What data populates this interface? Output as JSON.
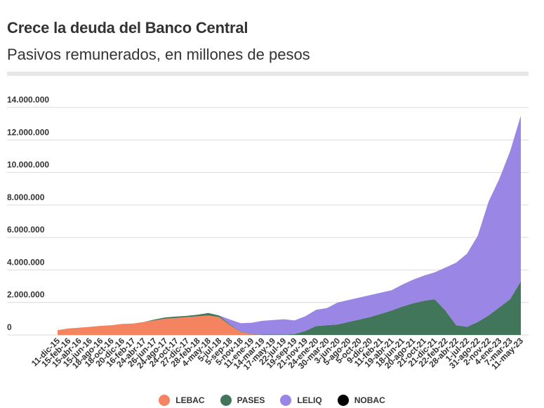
{
  "title": "Crece la deuda del Banco Central",
  "subtitle": "Pasivos remunerados, en millones de pesos",
  "colors": {
    "LEBAC": "#f4845f",
    "PASES": "#42765a",
    "LELIQ": "#9a86e5",
    "NOBAC": "#000000"
  },
  "legend": [
    "LEBAC",
    "PASES",
    "LELIQ",
    "NOBAC"
  ],
  "chart_data": {
    "type": "area",
    "stacked": true,
    "ylim": [
      0,
      14000000
    ],
    "yticks": [
      "0",
      "2.000.000",
      "4.000.000",
      "6.000.000",
      "8.000.000",
      "10.000.000",
      "12.000.000",
      "14.000.000"
    ],
    "grid": true,
    "legend_position": "bottom",
    "xticks": [
      "11-dic-15",
      "15-feb-16",
      "15-abr-16",
      "15-jun-16",
      "18-ago-16",
      "18-oct-16",
      "20-dic-16",
      "16-feb-17",
      "24-abr-17",
      "26-jun-17",
      "24-ago-17",
      "24-oct-17",
      "27-dic-17",
      "28-feb-18",
      "4-may-18",
      "5-jul-18",
      "5-sep-18",
      "5-nov-18",
      "11-ene-19",
      "14-mar-19",
      "17-may-19",
      "22-jul-19",
      "19-sep-19",
      "21-nov-19",
      "24-ene-20",
      "30-mar-20",
      "3-jun-20",
      "5-ago-20",
      "5-oct-20",
      "9-dic-20",
      "11-feb-21",
      "19-abr-21",
      "18-jun-21",
      "20-ago-21",
      "21-oct-21",
      "21-dic-21",
      "22-feb-22",
      "28-abr-22",
      "1-jul-22",
      "31-ago-22",
      "2-nov-22",
      "4-ene-23",
      "7-mar-23",
      "11-may-23"
    ],
    "series": [
      {
        "name": "LEBAC",
        "values": [
          300000,
          400000,
          450000,
          500000,
          560000,
          600000,
          680000,
          700000,
          800000,
          900000,
          1000000,
          1050000,
          1100000,
          1150000,
          1200000,
          1100000,
          600000,
          200000,
          30000,
          0,
          0,
          0,
          0,
          0,
          0,
          0,
          0,
          0,
          0,
          0,
          0,
          0,
          0,
          0,
          0,
          0,
          0,
          0,
          0,
          0,
          0,
          0,
          0,
          0
        ]
      },
      {
        "name": "PASES",
        "values": [
          0,
          0,
          0,
          0,
          0,
          0,
          0,
          0,
          0,
          50000,
          80000,
          80000,
          80000,
          100000,
          150000,
          100000,
          50000,
          20000,
          20000,
          20000,
          20000,
          20000,
          50000,
          250000,
          550000,
          600000,
          650000,
          800000,
          950000,
          1100000,
          1300000,
          1500000,
          1750000,
          1950000,
          2100000,
          2200000,
          1500000,
          600000,
          500000,
          800000,
          1200000,
          1700000,
          2200000,
          3300000
        ]
      },
      {
        "name": "LELIQ",
        "values": [
          0,
          0,
          0,
          0,
          0,
          0,
          0,
          0,
          0,
          0,
          0,
          0,
          0,
          0,
          0,
          0,
          300000,
          500000,
          700000,
          850000,
          900000,
          950000,
          850000,
          900000,
          1000000,
          1050000,
          1350000,
          1350000,
          1350000,
          1350000,
          1300000,
          1250000,
          1350000,
          1450000,
          1550000,
          1650000,
          2650000,
          3850000,
          4500000,
          5300000,
          7000000,
          7900000,
          9100000,
          10200000
        ]
      },
      {
        "name": "NOBAC",
        "values": [
          0,
          0,
          0,
          0,
          0,
          0,
          0,
          0,
          0,
          0,
          0,
          0,
          0,
          0,
          0,
          0,
          0,
          0,
          0,
          0,
          0,
          0,
          0,
          0,
          0,
          0,
          0,
          0,
          0,
          0,
          0,
          0,
          0,
          0,
          0,
          0,
          0,
          0,
          0,
          0,
          0,
          0,
          0,
          0
        ]
      }
    ]
  }
}
